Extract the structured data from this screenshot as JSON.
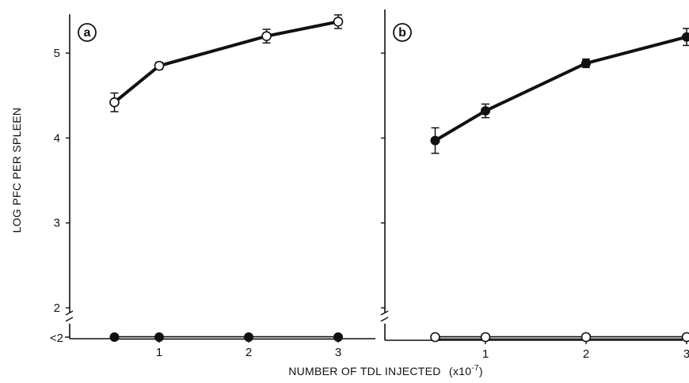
{
  "chart_data": [
    {
      "type": "line",
      "panel_label": "a",
      "x": [
        0.5,
        1,
        2.2,
        3
      ],
      "series": [
        {
          "marker": "open",
          "values": [
            4.42,
            4.85,
            5.2,
            5.37
          ],
          "errors": [
            0.11,
            0.04,
            0.08,
            0.08
          ]
        },
        {
          "marker": "filled",
          "x": [
            0.5,
            1,
            2,
            3
          ],
          "values": [
            1.65,
            1.65,
            1.65,
            1.65
          ]
        }
      ],
      "xticks": [
        "1",
        "2",
        "3"
      ],
      "yticks": [
        "2",
        "3",
        "4",
        "5"
      ],
      "ybreak_label": "<2",
      "xlim": [
        0,
        3.1
      ],
      "ylim": [
        1.6,
        5.6
      ]
    },
    {
      "type": "line",
      "panel_label": "b",
      "x": [
        0.5,
        1,
        2,
        3
      ],
      "series": [
        {
          "marker": "filled",
          "values": [
            3.97,
            4.32,
            4.88,
            5.19
          ],
          "errors": [
            0.15,
            0.08,
            0.05,
            0.1
          ]
        },
        {
          "marker": "open",
          "values": [
            1.65,
            1.65,
            1.67,
            1.68
          ]
        }
      ],
      "xticks": [
        "1",
        "2",
        "3"
      ],
      "yticks": [],
      "xlim": [
        0,
        3.1
      ],
      "ylim": [
        1.6,
        5.6
      ]
    }
  ],
  "ylabel": "LOG PFC PER SPLEEN",
  "xlabel": "NUMBER OF TDL INJECTED",
  "xlabel_unit": "(x10",
  "xlabel_exp": "-7",
  "xlabel_close": ")",
  "colors": {
    "ink": "#111111",
    "background": "#ffffff"
  }
}
